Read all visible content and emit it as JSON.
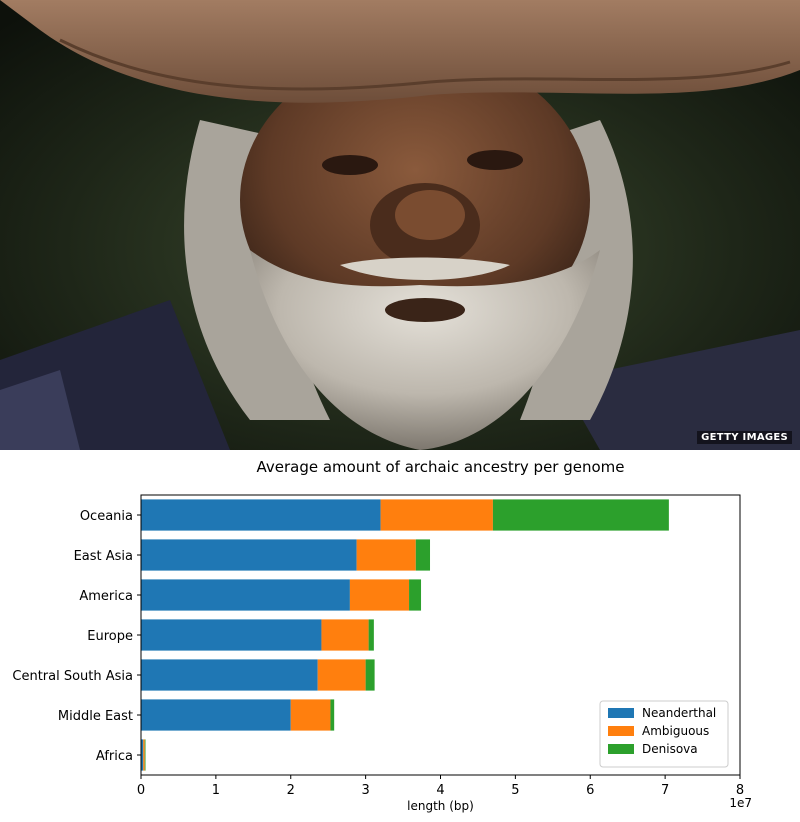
{
  "photo": {
    "credit": "GETTY IMAGES"
  },
  "chart_data": {
    "type": "bar",
    "orientation": "horizontal",
    "stacked": true,
    "title": "Average amount of archaic ancestry per genome",
    "xlabel": "length (bp)",
    "x_scale_note": "1e7",
    "xlim": [
      0,
      8
    ],
    "xticks": [
      0,
      1,
      2,
      3,
      4,
      5,
      6,
      7,
      8
    ],
    "categories": [
      "Oceania",
      "East Asia",
      "America",
      "Europe",
      "Central South Asia",
      "Middle East",
      "Africa"
    ],
    "series": [
      {
        "name": "Neanderthal",
        "color": "#1f77b4",
        "values": [
          3.2,
          2.88,
          2.79,
          2.41,
          2.36,
          2.0,
          0.03
        ]
      },
      {
        "name": "Ambiguous",
        "color": "#ff7f0e",
        "values": [
          1.5,
          0.79,
          0.79,
          0.63,
          0.64,
          0.53,
          0.02
        ]
      },
      {
        "name": "Denisova",
        "color": "#2ca02c",
        "values": [
          2.35,
          0.19,
          0.16,
          0.07,
          0.12,
          0.05,
          0.01
        ]
      }
    ],
    "legend_position": "bottom-right",
    "grid": false
  }
}
